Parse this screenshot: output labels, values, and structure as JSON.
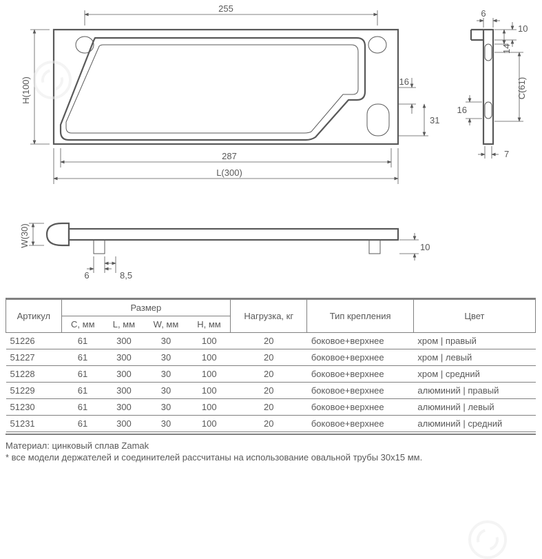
{
  "dims": {
    "top255": "255",
    "H": "H(100)",
    "d287": "287",
    "L": "L(300)",
    "d16a": "16",
    "d31": "31",
    "d6side": "6",
    "d10top": "10",
    "d14": "14",
    "C": "C(61)",
    "d16b": "16",
    "d7": "7",
    "W": "W(30)",
    "d10bot": "10",
    "d6bot": "6",
    "d85": "8,5"
  },
  "col": {
    "line": "#595959",
    "text": "#595959"
  },
  "table": {
    "headers": {
      "art": "Артикул",
      "size": "Размер",
      "c": "C, мм",
      "l": "L, мм",
      "w": "W, мм",
      "h": "H, мм",
      "load": "Нагрузка, кг",
      "mount": "Тип крепления",
      "color": "Цвет"
    },
    "rows": [
      {
        "art": "51226",
        "c": "61",
        "l": "300",
        "w": "30",
        "h": "100",
        "load": "20",
        "mount": "боковое+верхнее",
        "color": "хром | правый"
      },
      {
        "art": "51227",
        "c": "61",
        "l": "300",
        "w": "30",
        "h": "100",
        "load": "20",
        "mount": "боковое+верхнее",
        "color": "хром | левый"
      },
      {
        "art": "51228",
        "c": "61",
        "l": "300",
        "w": "30",
        "h": "100",
        "load": "20",
        "mount": "боковое+верхнее",
        "color": "хром | средний"
      },
      {
        "art": "51229",
        "c": "61",
        "l": "300",
        "w": "30",
        "h": "100",
        "load": "20",
        "mount": "боковое+верхнее",
        "color": "алюминий | правый"
      },
      {
        "art": "51230",
        "c": "61",
        "l": "300",
        "w": "30",
        "h": "100",
        "load": "20",
        "mount": "боковое+верхнее",
        "color": "алюминий | левый"
      },
      {
        "art": "51231",
        "c": "61",
        "l": "300",
        "w": "30",
        "h": "100",
        "load": "20",
        "mount": "боковое+верхнее",
        "color": "алюминий | средний"
      }
    ]
  },
  "notes": {
    "mat": "Материал: цинковый сплав Zamak",
    "foot": "* все модели держателей и соединителей рассчитаны на использование овальной трубы 30x15 мм."
  }
}
